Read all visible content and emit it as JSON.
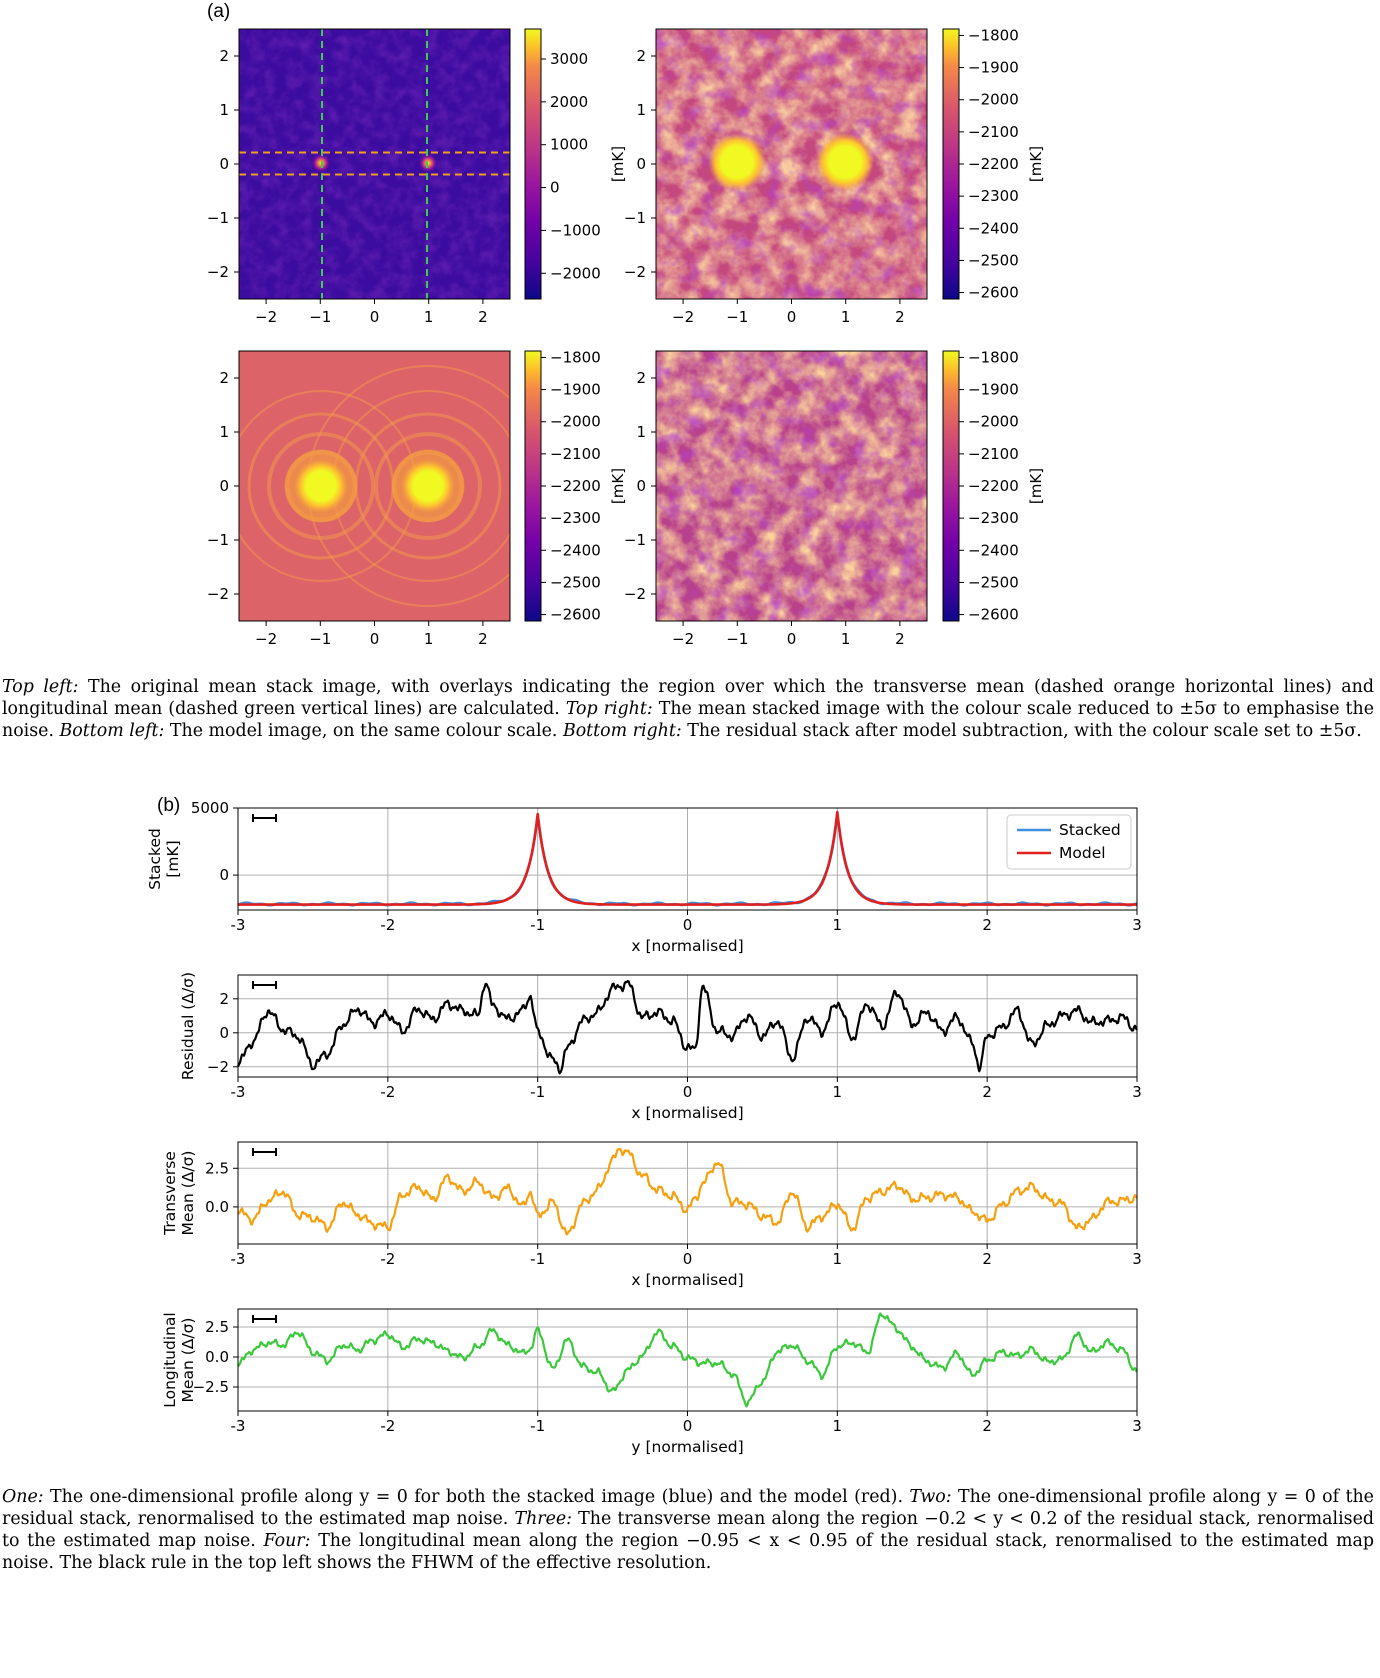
{
  "panel_a_label": "(a)",
  "panel_b_label": "(b)",
  "caption_a": {
    "tl_head": "Top left:",
    "tl_text": " The original mean stack image, with overlays indicating the region over which the transverse mean (dashed orange horizontal lines) and longitudinal mean (dashed green vertical lines) are calculated. ",
    "tr_head": "Top right:",
    "tr_text": " The mean stacked image with the colour scale reduced to ±5σ to emphasise the noise. ",
    "bl_head": "Bottom left:",
    "bl_text": " The model image, on the same colour scale. ",
    "br_head": "Bottom right:",
    "br_text": " The residual stack after model subtraction, with the colour scale set to ±5σ."
  },
  "caption_b": {
    "one_head": "One:",
    "one_text": " The one-dimensional profile along y = 0 for both the stacked image (blue) and the model (red). ",
    "two_head": "Two:",
    "two_text": " The one-dimensional profile along y = 0 of the residual stack, renormalised to the estimated map noise. ",
    "three_head": "Three:",
    "three_text": " The transverse mean along the region −0.2 < y < 0.2 of the residual stack, renormalised to the estimated map noise. ",
    "four_head": "Four:",
    "four_text": " The longitudinal mean along the region −0.95 < x < 0.95 of the residual stack, renormalised to the estimated map noise. The black rule in the top left shows the FHWM of the effective resolution."
  },
  "chart_data": [
    {
      "type": "heatmap",
      "id": "a-top-left",
      "image": "original mean stack",
      "xticks": [
        "−2",
        "−1",
        "0",
        "1",
        "2"
      ],
      "yticks": [
        "2",
        "1",
        "0",
        "−1",
        "−2"
      ],
      "colorbar_ticks": [
        "3000",
        "2000",
        "1000",
        "0",
        "−1000",
        "−2000"
      ],
      "colorbar_range": [
        -2600,
        3700
      ],
      "colorbar_label": "[mK]",
      "overlays": {
        "horizontal_dashed_y": [
          0.2,
          -0.2
        ],
        "vertical_dashed_x": [
          -1,
          1
        ],
        "horizontal_color": "#f0a020",
        "vertical_color": "#3ccf4e"
      },
      "peaks_x": [
        -1,
        1
      ]
    },
    {
      "type": "heatmap",
      "id": "a-top-right",
      "image": "mean stack, scale ±5σ",
      "xticks": [
        "−2",
        "−1",
        "0",
        "1",
        "2"
      ],
      "yticks": [
        "2",
        "1",
        "0",
        "−1",
        "−2"
      ],
      "colorbar_ticks": [
        "−1800",
        "−1900",
        "−2000",
        "−2100",
        "−2200",
        "−2300",
        "−2400",
        "−2500",
        "−2600"
      ],
      "colorbar_range": [
        -2620,
        -1780
      ],
      "colorbar_label": "[mK]"
    },
    {
      "type": "heatmap",
      "id": "a-bottom-left",
      "image": "model",
      "xticks": [
        "−2",
        "−1",
        "0",
        "1",
        "2"
      ],
      "yticks": [
        "2",
        "1",
        "0",
        "−1",
        "−2"
      ],
      "colorbar_ticks": [
        "−1800",
        "−1900",
        "−2000",
        "−2100",
        "−2200",
        "−2300",
        "−2400",
        "−2500",
        "−2600"
      ],
      "colorbar_range": [
        -2620,
        -1780
      ],
      "colorbar_label": "[mK]"
    },
    {
      "type": "heatmap",
      "id": "a-bottom-right",
      "image": "residual",
      "xticks": [
        "−2",
        "−1",
        "0",
        "1",
        "2"
      ],
      "yticks": [
        "2",
        "1",
        "0",
        "−1",
        "−2"
      ],
      "colorbar_ticks": [
        "−1800",
        "−1900",
        "−2000",
        "−2100",
        "−2200",
        "−2300",
        "−2400",
        "−2500",
        "−2600"
      ],
      "colorbar_range": [
        -2620,
        -1780
      ],
      "colorbar_label": "[mK]"
    },
    {
      "type": "line",
      "id": "b-stacked",
      "ylabel": [
        "Stacked",
        "[mK]"
      ],
      "xlabel": "x [normalised]",
      "xlim": [
        -3,
        3
      ],
      "ylim": [
        -2600,
        5000
      ],
      "xticks": [
        "-3",
        "-2",
        "-1",
        "0",
        "1",
        "2",
        "3"
      ],
      "yticks": [
        {
          "v": 5000,
          "t": "5000"
        },
        {
          "v": 0,
          "t": "0"
        }
      ],
      "legend": {
        "position": "top-right",
        "entries": [
          "Stacked",
          "Model"
        ]
      },
      "series": [
        {
          "name": "Stacked",
          "color": "#3d8fdd",
          "peaks": [
            [
              -1,
              4400
            ],
            [
              1,
              4600
            ]
          ],
          "baseline": -2150
        },
        {
          "name": "Model",
          "color": "#e0201e",
          "peaks": [
            [
              -1,
              4550
            ],
            [
              1,
              4700
            ]
          ],
          "baseline": -2200
        }
      ]
    },
    {
      "type": "line",
      "id": "b-residual",
      "ylabel": [
        "Residual (Δ/σ)"
      ],
      "xlabel": "x [normalised]",
      "xlim": [
        -3,
        3
      ],
      "ylim": [
        -2.6,
        3.4
      ],
      "xticks": [
        "-3",
        "-2",
        "-1",
        "0",
        "1",
        "2",
        "3"
      ],
      "yticks": [
        {
          "v": 2,
          "t": "2"
        },
        {
          "v": 0,
          "t": "0"
        },
        {
          "v": -2,
          "t": "−2"
        }
      ],
      "series": [
        {
          "color": "#000000",
          "x": [
            -3,
            -2.9,
            -2.8,
            -2.7,
            -2.6,
            -2.5,
            -2.4,
            -2.3,
            -2.2,
            -2.1,
            -2,
            -1.9,
            -1.8,
            -1.7,
            -1.6,
            -1.5,
            -1.4,
            -1.35,
            -1.3,
            -1.2,
            -1.1,
            -1.05,
            -1,
            -0.9,
            -0.85,
            -0.8,
            -0.7,
            -0.6,
            -0.5,
            -0.4,
            -0.3,
            -0.2,
            -0.1,
            0,
            0.05,
            0.1,
            0.2,
            0.3,
            0.4,
            0.5,
            0.6,
            0.7,
            0.8,
            0.9,
            1,
            1.1,
            1.2,
            1.3,
            1.4,
            1.5,
            1.6,
            1.7,
            1.8,
            1.9,
            1.95,
            2,
            2.1,
            2.2,
            2.3,
            2.4,
            2.5,
            2.6,
            2.7,
            2.8,
            2.9,
            3
          ],
          "y": [
            -1.8,
            -0.5,
            1.3,
            0.2,
            -0.2,
            -1.9,
            -1.2,
            0.5,
            1.4,
            0.6,
            1.1,
            0.1,
            1.4,
            0.8,
            1.7,
            1.3,
            1.0,
            3.0,
            1.6,
            0.8,
            1.3,
            2.2,
            0.0,
            -1.6,
            -2.1,
            -0.9,
            0.7,
            1.2,
            2.6,
            2.9,
            0.9,
            1.2,
            0.7,
            -0.9,
            -1.0,
            2.7,
            0.1,
            -0.2,
            1.0,
            -0.2,
            0.7,
            -1.5,
            0.9,
            0.1,
            1.8,
            -0.3,
            1.7,
            0.4,
            2.4,
            0.5,
            1.2,
            0.1,
            0.9,
            -0.6,
            -2.0,
            -0.2,
            0.3,
            1.3,
            -0.7,
            0.4,
            1.0,
            1.3,
            0.6,
            0.7,
            0.9,
            0.2
          ]
        }
      ]
    },
    {
      "type": "line",
      "id": "b-transverse",
      "ylabel": [
        "Transverse",
        "Mean (Δ/σ)"
      ],
      "xlabel": "x [normalised]",
      "xlim": [
        -3,
        3
      ],
      "ylim": [
        -2.4,
        4.2
      ],
      "xticks": [
        "-3",
        "-2",
        "-1",
        "0",
        "1",
        "2",
        "3"
      ],
      "yticks": [
        {
          "v": 2.5,
          "t": "2.5"
        },
        {
          "v": 0,
          "t": "0.0"
        }
      ],
      "series": [
        {
          "color": "#f5a00f",
          "x": [
            -3,
            -2.9,
            -2.8,
            -2.7,
            -2.6,
            -2.5,
            -2.4,
            -2.3,
            -2.2,
            -2.1,
            -2,
            -1.9,
            -1.8,
            -1.7,
            -1.6,
            -1.5,
            -1.4,
            -1.3,
            -1.2,
            -1.1,
            -1.05,
            -1,
            -0.9,
            -0.8,
            -0.7,
            -0.6,
            -0.5,
            -0.45,
            -0.4,
            -0.3,
            -0.2,
            -0.1,
            0,
            0.05,
            0.1,
            0.2,
            0.3,
            0.4,
            0.5,
            0.6,
            0.7,
            0.8,
            0.9,
            1,
            1.1,
            1.2,
            1.3,
            1.4,
            1.5,
            1.6,
            1.7,
            1.8,
            1.9,
            2,
            2.1,
            2.2,
            2.3,
            2.4,
            2.5,
            2.6,
            2.7,
            2.8,
            2.9,
            3
          ],
          "y": [
            -0.3,
            -0.8,
            0.4,
            1.0,
            -0.5,
            -0.7,
            -1.3,
            0.3,
            -0.5,
            -1.1,
            -1.3,
            0.8,
            1.3,
            0.5,
            1.9,
            1.0,
            1.6,
            0.6,
            1.2,
            0.0,
            1.0,
            -0.6,
            0.3,
            -1.8,
            0.2,
            1.1,
            3.0,
            3.8,
            3.5,
            2.0,
            1.1,
            0.7,
            -0.2,
            0.5,
            1.5,
            2.9,
            0.3,
            0.2,
            -0.6,
            -1.0,
            1.0,
            -1.3,
            -0.6,
            0.2,
            -1.4,
            0.6,
            1.0,
            1.4,
            0.5,
            0.6,
            0.8,
            0.6,
            -0.3,
            -0.9,
            0.1,
            1.0,
            1.3,
            0.5,
            0.2,
            -1.4,
            -0.8,
            0.3,
            0.4,
            0.6
          ]
        }
      ]
    },
    {
      "type": "line",
      "id": "b-longitudinal",
      "ylabel": [
        "Longitudinal",
        "Mean (Δ/σ)"
      ],
      "xlabel": "y [normalised]",
      "xlim": [
        -3,
        3
      ],
      "ylim": [
        -4.5,
        4.0
      ],
      "xticks": [
        "-3",
        "-2",
        "-1",
        "0",
        "1",
        "2",
        "3"
      ],
      "yticks": [
        {
          "v": 2.5,
          "t": "2.5"
        },
        {
          "v": 0,
          "t": "0.0"
        },
        {
          "v": -2.5,
          "t": "−2.5"
        }
      ],
      "series": [
        {
          "color": "#3cc83c",
          "x": [
            -3,
            -2.9,
            -2.8,
            -2.7,
            -2.6,
            -2.5,
            -2.4,
            -2.3,
            -2.2,
            -2.1,
            -2,
            -1.9,
            -1.8,
            -1.7,
            -1.6,
            -1.5,
            -1.4,
            -1.3,
            -1.2,
            -1.1,
            -1.05,
            -1,
            -0.9,
            -0.8,
            -0.7,
            -0.6,
            -0.5,
            -0.4,
            -0.3,
            -0.2,
            -0.1,
            0,
            0.1,
            0.2,
            0.3,
            0.4,
            0.5,
            0.6,
            0.7,
            0.8,
            0.9,
            1,
            1.1,
            1.2,
            1.3,
            1.4,
            1.5,
            1.6,
            1.7,
            1.8,
            1.9,
            2,
            2.1,
            2.2,
            2.3,
            2.4,
            2.5,
            2.6,
            2.7,
            2.8,
            2.9,
            3
          ],
          "y": [
            -0.6,
            0.6,
            1.2,
            1.0,
            2.1,
            0.4,
            -0.3,
            1.0,
            0.6,
            1.4,
            1.9,
            0.8,
            1.5,
            1.2,
            0.5,
            -0.1,
            0.8,
            2.2,
            1.0,
            0.3,
            0.7,
            2.2,
            -1.0,
            1.4,
            -0.8,
            -1.3,
            -2.9,
            -1.1,
            0.1,
            2.1,
            0.9,
            -0.1,
            -0.5,
            -0.5,
            -1.4,
            -3.8,
            -2.0,
            0.5,
            1.0,
            -0.3,
            -1.5,
            0.9,
            1.2,
            0.4,
            3.6,
            2.3,
            0.8,
            -0.4,
            -0.9,
            0.3,
            -1.5,
            -0.3,
            0.4,
            0.1,
            0.6,
            -0.4,
            -0.2,
            1.8,
            0.4,
            1.2,
            0.6,
            -1.2
          ]
        }
      ]
    }
  ]
}
